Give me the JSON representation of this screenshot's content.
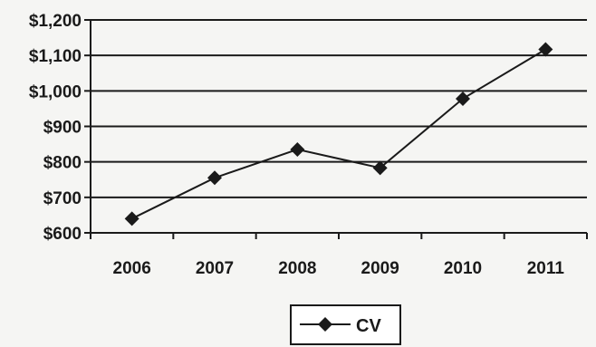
{
  "chart_data": {
    "type": "line",
    "title": "",
    "xlabel": "",
    "ylabel": "",
    "categories": [
      "2006",
      "2007",
      "2008",
      "2009",
      "2010",
      "2011"
    ],
    "series": [
      {
        "name": "CV",
        "values": [
          640,
          755,
          835,
          783,
          978,
          1117
        ],
        "color": "#1a1a1a",
        "marker": "diamond"
      }
    ],
    "ylim": [
      600,
      1200
    ],
    "yticks": [
      600,
      700,
      800,
      900,
      1000,
      1100,
      1200
    ],
    "ytick_labels": [
      "$600",
      "$700",
      "$800",
      "$900",
      "$1,000",
      "$1,100",
      "$1,200"
    ],
    "grid": true,
    "legend_position": "bottom-center"
  }
}
